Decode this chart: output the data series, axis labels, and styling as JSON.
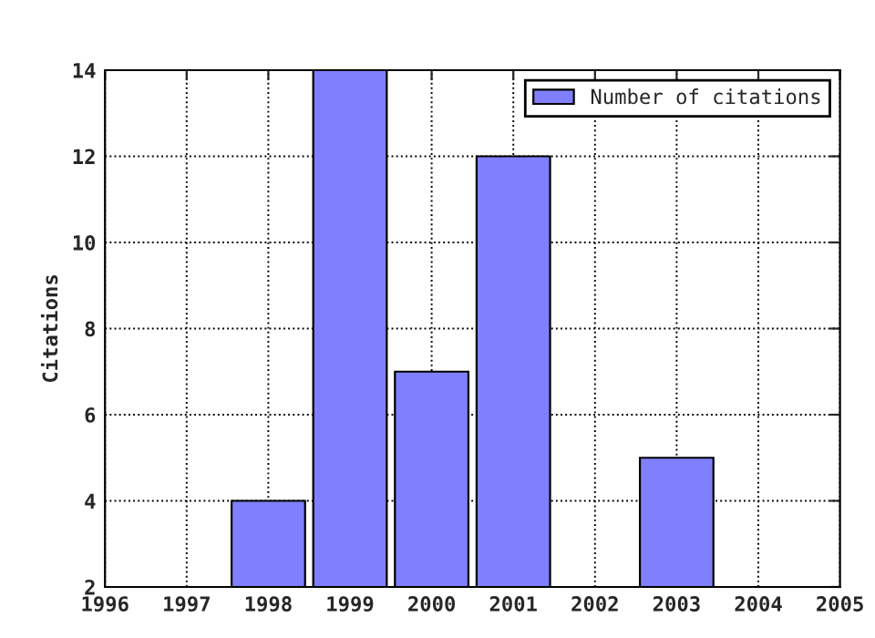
{
  "chart_data": {
    "type": "bar",
    "ylabel": "Citations",
    "x": [
      1998,
      1999,
      2000,
      2001,
      2003
    ],
    "series": [
      {
        "name": "Number of citations",
        "color": "#8080ff",
        "values": [
          4,
          14,
          7,
          12,
          5
        ]
      }
    ],
    "xlim": [
      1996,
      2005
    ],
    "xticks": [
      1996,
      1997,
      1998,
      1999,
      2000,
      2001,
      2002,
      2003,
      2004,
      2005
    ],
    "ylim": [
      2,
      14
    ],
    "yticks": [
      2,
      4,
      6,
      8,
      10,
      12,
      14
    ],
    "grid": true,
    "legend": "top right"
  }
}
